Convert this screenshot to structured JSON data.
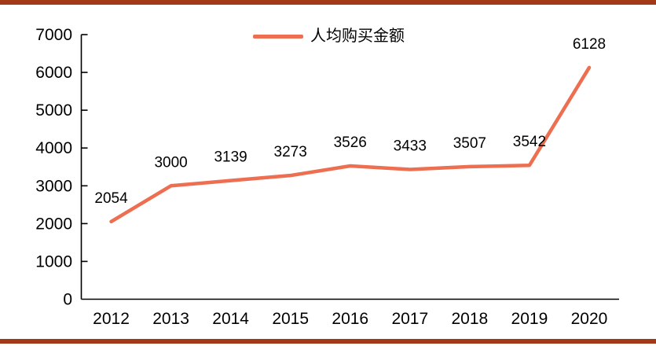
{
  "page": {
    "background": "#ffffff"
  },
  "accent_bars": {
    "color": "#A23A18"
  },
  "chart_data": {
    "type": "line",
    "title": "",
    "xlabel": "",
    "ylabel": "",
    "categories": [
      "2012",
      "2013",
      "2014",
      "2015",
      "2016",
      "2017",
      "2018",
      "2019",
      "2020"
    ],
    "series": [
      {
        "name": "人均购买金额",
        "color": "#ED6E50",
        "values": [
          2054,
          3000,
          3139,
          3273,
          3526,
          3433,
          3507,
          3542,
          6128
        ]
      }
    ],
    "ylim": [
      0,
      7000
    ],
    "yticks": [
      0,
      1000,
      2000,
      3000,
      4000,
      5000,
      6000,
      7000
    ],
    "grid": false,
    "data_labels": true,
    "legend_position": "top-center",
    "axis_color": "#000000",
    "text_color": "#000000"
  }
}
